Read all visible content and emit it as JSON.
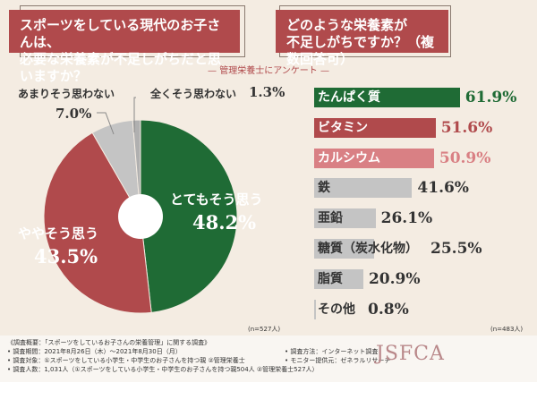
{
  "left_question": {
    "line1": "スポーツをしている現代のお子さんは、",
    "line2": "必要な栄養素が不足しがちだと思いますか？"
  },
  "right_question": {
    "line1": "どのような栄養素が",
    "line2": "不足しがちですか？（複数回答可）"
  },
  "subtitle": "— 管理栄養士にアンケート —",
  "chart_data": [
    {
      "type": "pie",
      "donut": true,
      "categories": [
        "とてもそう思う",
        "ややそう思う",
        "あまりそう思わない",
        "全くそう思わない"
      ],
      "values": [
        48.2,
        43.5,
        7.0,
        1.3
      ],
      "labels": [
        "48.2%",
        "43.5%",
        "7.0%",
        "1.3%"
      ],
      "colors": [
        "#1f6b35",
        "#b04a4c",
        "#c4c4c4",
        "#b0b0b0"
      ],
      "note": "(n=527人)"
    },
    {
      "type": "bar",
      "orientation": "horizontal",
      "categories": [
        "たんぱく質",
        "ビタミン",
        "カルシウム",
        "鉄",
        "亜鉛",
        "糖質（炭水化物）",
        "脂質",
        "その他"
      ],
      "values": [
        61.9,
        51.6,
        50.9,
        41.6,
        26.1,
        25.5,
        20.9,
        0.8
      ],
      "labels": [
        "61.9%",
        "51.6%",
        "50.9%",
        "41.6%",
        "26.1%",
        "25.5%",
        "20.9%",
        "0.8%"
      ],
      "colors": [
        "#1f6b35",
        "#b04a4c",
        "#d98084",
        "#c4c4c4",
        "#c4c4c4",
        "#c4c4c4",
        "#c4c4c4",
        "#c4c4c4"
      ],
      "note": "(n=483人)"
    }
  ],
  "footer": {
    "heading": "《調査概要：「スポーツをしているお子さんの栄養管理」に関する調査》",
    "period": "• 調査期間：2021年8月26日（木）～2021年8月30日（月）",
    "target": "• 調査対象：①スポーツをしている小学生・中学生のお子さんを持つ親 ②管理栄養士",
    "count": "• 調査人数：1,031人（①スポーツをしている小学生・中学生のお子さんを持つ親504人 ②管理栄養士527人）",
    "method": "• 調査方法：インターネット調査",
    "monitor": "• モニター提供元：ゼネラルリサーチ",
    "logo": "JSFCA"
  }
}
